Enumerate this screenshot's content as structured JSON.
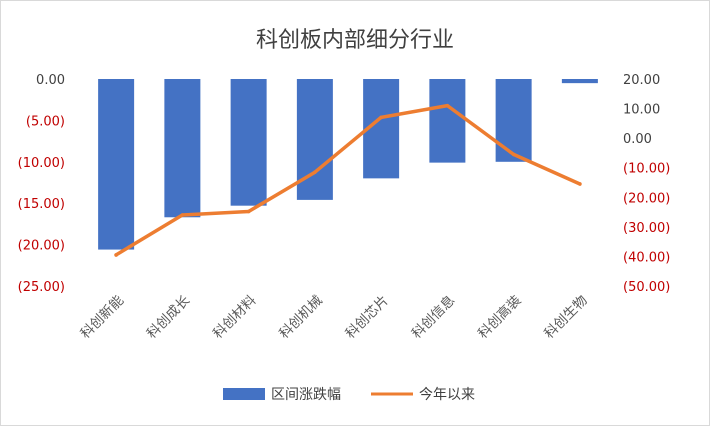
{
  "chart_data": {
    "type": "bar",
    "title": "科创板内部细分行业",
    "categories": [
      "科创新能",
      "科创成长",
      "科创材料",
      "科创机械",
      "科创芯片",
      "科创信息",
      "科创高装",
      "科创生物"
    ],
    "series": [
      {
        "name": "区间涨跌幅",
        "type": "bar",
        "axis": "left",
        "color": "#4472c4",
        "values": [
          -20.6,
          -16.7,
          -15.3,
          -14.6,
          -12.0,
          -10.1,
          -10.0,
          -0.5
        ]
      },
      {
        "name": "今年以来",
        "type": "line",
        "axis": "right",
        "color": "#ed7d31",
        "values": [
          -39.5,
          -26.0,
          -24.8,
          -11.5,
          7.0,
          11.0,
          -5.5,
          -15.5
        ]
      }
    ],
    "y_left": {
      "range": [
        -25,
        0
      ],
      "ticks": [
        0,
        -5,
        -10,
        -15,
        -20,
        -25
      ],
      "tick_labels": [
        "0.00",
        "(5.00)",
        "(10.00)",
        "(15.00)",
        "(20.00)",
        "(25.00)"
      ]
    },
    "y_right": {
      "range": [
        -50,
        20
      ],
      "ticks": [
        20,
        10,
        0,
        -10,
        -20,
        -30,
        -40,
        -50
      ],
      "tick_labels": [
        "20.00",
        "10.00",
        "0.00",
        "(10.00)",
        "(20.00)",
        "(30.00)",
        "(40.00)",
        "(50.00)"
      ]
    },
    "negative_label_color": "#c00000",
    "positive_label_color": "#404040",
    "grid": false,
    "legend_position": "bottom"
  }
}
